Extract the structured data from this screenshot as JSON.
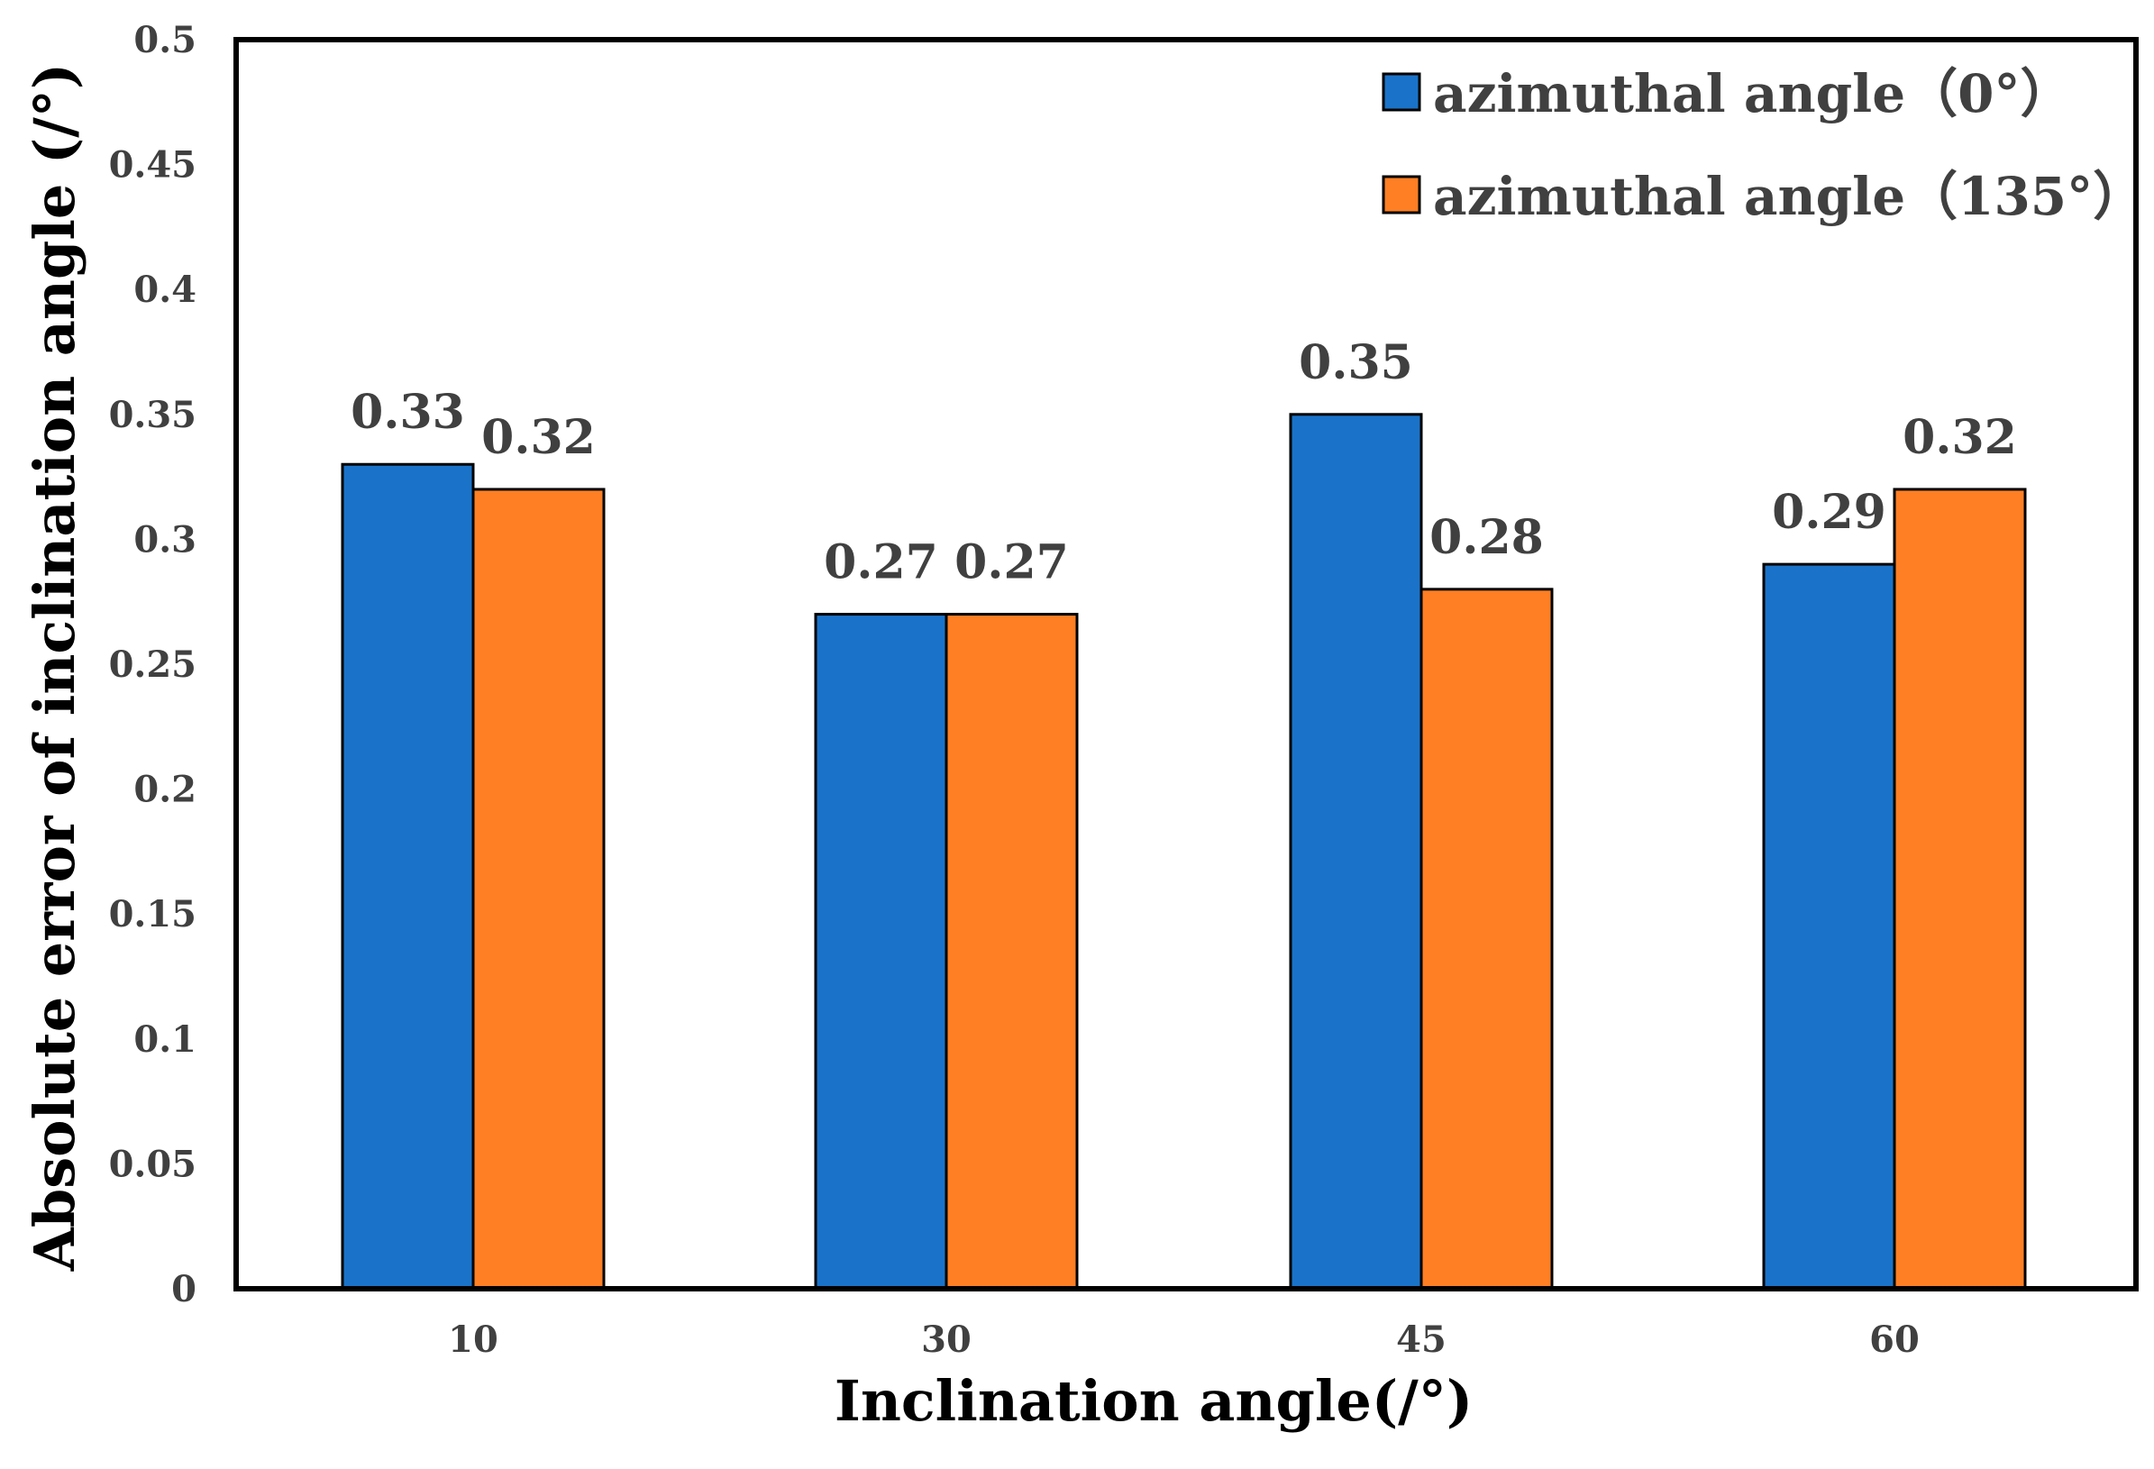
{
  "chart_data": {
    "type": "bar",
    "categories": [
      "10",
      "30",
      "45",
      "60"
    ],
    "series": [
      {
        "name": "azimuthal angle（0°）",
        "values": [
          0.33,
          0.27,
          0.35,
          0.29
        ],
        "color": "#1a73c9"
      },
      {
        "name": "azimuthal angle（135°）",
        "values": [
          0.32,
          0.27,
          0.28,
          0.32
        ],
        "color": "#fe7f24"
      }
    ],
    "data_labels": [
      [
        "0.33",
        "0.27",
        "0.35",
        "0.29"
      ],
      [
        "0.32",
        "0.27",
        "0.28",
        "0.32"
      ]
    ],
    "xlabel": "Inclination angle(/°)",
    "ylabel": "Absolute error of inclination angle (/°)",
    "ylim": [
      0,
      0.5
    ],
    "yticks": [
      "0",
      "0.05",
      "0.1",
      "0.15",
      "0.2",
      "0.25",
      "0.3",
      "0.35",
      "0.4",
      "0.45",
      "0.5"
    ],
    "grid": false,
    "legend_position": "top-right"
  }
}
